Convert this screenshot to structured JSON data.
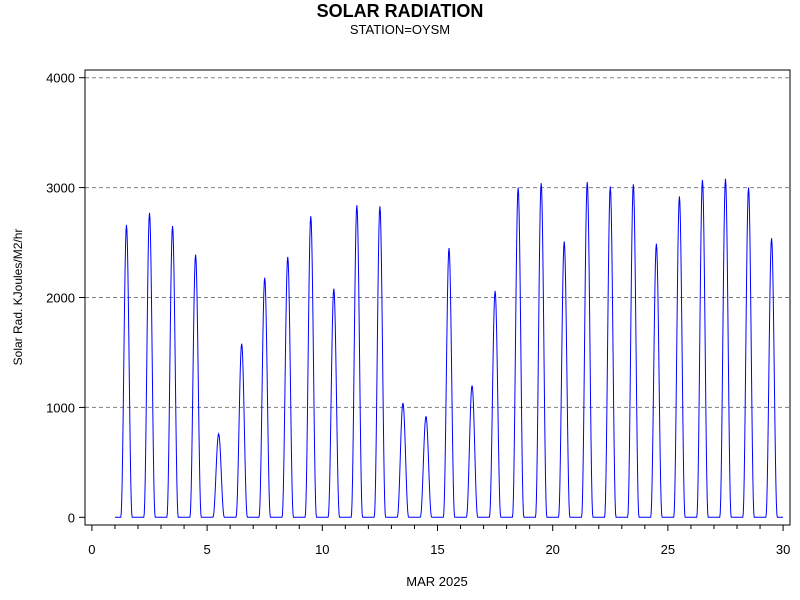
{
  "chart_data": {
    "type": "line",
    "title": "SOLAR RADIATION",
    "subtitle": "STATION=OYSM",
    "xlabel": "MAR 2025",
    "ylabel": "Solar Rad. KJoules/M2/hr",
    "xlim": [
      -0.3,
      30.3
    ],
    "ylim": [
      -70,
      4070
    ],
    "x_ticks": [
      0,
      5,
      10,
      15,
      20,
      25,
      30
    ],
    "y_ticks": [
      0,
      1000,
      2000,
      3000,
      4000
    ],
    "grid": "horizontal dashed at y ticks",
    "line_color": "#0000ff",
    "series": [
      {
        "daily_peaks": [
          {
            "day": 1,
            "peak": 2660
          },
          {
            "day": 2,
            "peak": 2770
          },
          {
            "day": 3,
            "peak": 2650
          },
          {
            "day": 4,
            "peak": 2390
          },
          {
            "day": 5,
            "peak": 760
          },
          {
            "day": 6,
            "peak": 1580
          },
          {
            "day": 7,
            "peak": 2180
          },
          {
            "day": 8,
            "peak": 2370
          },
          {
            "day": 9,
            "peak": 2740
          },
          {
            "day": 10,
            "peak": 2080
          },
          {
            "day": 11,
            "peak": 2840
          },
          {
            "day": 12,
            "peak": 2830
          },
          {
            "day": 13,
            "peak": 1040
          },
          {
            "day": 14,
            "peak": 920
          },
          {
            "day": 15,
            "peak": 2450
          },
          {
            "day": 16,
            "peak": 1200
          },
          {
            "day": 17,
            "peak": 2060
          },
          {
            "day": 18,
            "peak": 3000
          },
          {
            "day": 19,
            "peak": 3040
          },
          {
            "day": 20,
            "peak": 2510
          },
          {
            "day": 21,
            "peak": 3050
          },
          {
            "day": 22,
            "peak": 3010
          },
          {
            "day": 23,
            "peak": 3030
          },
          {
            "day": 24,
            "peak": 2490
          },
          {
            "day": 25,
            "peak": 2920
          },
          {
            "day": 26,
            "peak": 3070
          },
          {
            "day": 27,
            "peak": 3080
          },
          {
            "day": 28,
            "peak": 3000
          },
          {
            "day": 29,
            "peak": 2540
          }
        ]
      }
    ]
  }
}
